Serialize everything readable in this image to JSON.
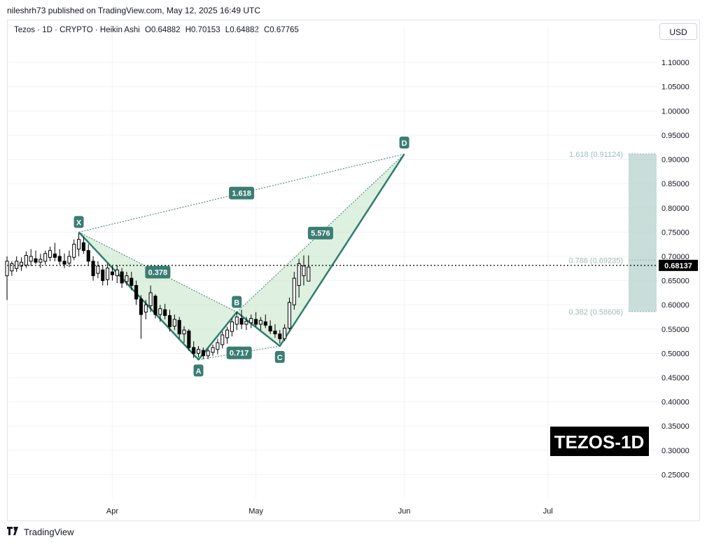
{
  "header": {
    "published_by": "nileshrh73 published on TradingView.com, May 12, 2025 16:49 UTC"
  },
  "symbol_bar": {
    "symbol": "Tezos · 1D · CRYPTO · Heikin Ashi",
    "open": "O0.64882",
    "high": "H0.70153",
    "low": "L0.64882",
    "close": "C0.67765"
  },
  "currency_button": "USD",
  "watermark": "TEZOS-1D",
  "footer": {
    "brand": "TradingView",
    "logo_icon": "tradingview-logo-icon"
  },
  "colors": {
    "pattern_line": "#2e7d6e",
    "pattern_fill": "#c8e6c9",
    "label_bg": "#3b7d73",
    "fib_zone": "#b2cfc9",
    "candle": "#000000",
    "watermark_bg": "#000000"
  },
  "chart_data": {
    "type": "candlestick",
    "y_scale": "linear",
    "ylim": [
      0.2,
      1.145
    ],
    "y_ticks": [
      "1.10000",
      "1.05000",
      "1.00000",
      "0.95000",
      "0.90000",
      "0.85000",
      "0.80000",
      "0.75000",
      "0.70000",
      "0.65000",
      "0.60000",
      "0.55000",
      "0.50000",
      "0.45000",
      "0.40000",
      "0.35000",
      "0.30000",
      "0.25000"
    ],
    "x_ticks": [
      {
        "label": "Apr",
        "date": "2025-04-01"
      },
      {
        "label": "May",
        "date": "2025-05-01"
      },
      {
        "label": "Jun",
        "date": "2025-06-01"
      },
      {
        "label": "Jul",
        "date": "2025-07-01"
      }
    ],
    "xlim": [
      "2025-03-10",
      "2025-07-24"
    ],
    "current_price": {
      "label": "0.68137",
      "value": 0.68137
    },
    "candles": [
      {
        "date": "2025-03-10",
        "o": 0.66,
        "h": 0.7,
        "l": 0.61,
        "c": 0.69
      },
      {
        "date": "2025-03-11",
        "o": 0.67,
        "h": 0.69,
        "l": 0.66,
        "c": 0.685
      },
      {
        "date": "2025-03-12",
        "o": 0.675,
        "h": 0.7,
        "l": 0.668,
        "c": 0.69
      },
      {
        "date": "2025-03-13",
        "o": 0.68,
        "h": 0.698,
        "l": 0.67,
        "c": 0.688
      },
      {
        "date": "2025-03-14",
        "o": 0.682,
        "h": 0.71,
        "l": 0.676,
        "c": 0.702
      },
      {
        "date": "2025-03-15",
        "o": 0.69,
        "h": 0.715,
        "l": 0.68,
        "c": 0.7
      },
      {
        "date": "2025-03-16",
        "o": 0.695,
        "h": 0.712,
        "l": 0.684,
        "c": 0.688
      },
      {
        "date": "2025-03-17",
        "o": 0.688,
        "h": 0.705,
        "l": 0.676,
        "c": 0.694
      },
      {
        "date": "2025-03-18",
        "o": 0.69,
        "h": 0.712,
        "l": 0.683,
        "c": 0.706
      },
      {
        "date": "2025-03-19",
        "o": 0.698,
        "h": 0.72,
        "l": 0.69,
        "c": 0.712
      },
      {
        "date": "2025-03-20",
        "o": 0.705,
        "h": 0.728,
        "l": 0.69,
        "c": 0.698
      },
      {
        "date": "2025-03-21",
        "o": 0.7,
        "h": 0.715,
        "l": 0.683,
        "c": 0.69
      },
      {
        "date": "2025-03-22",
        "o": 0.69,
        "h": 0.706,
        "l": 0.676,
        "c": 0.684
      },
      {
        "date": "2025-03-23",
        "o": 0.686,
        "h": 0.712,
        "l": 0.678,
        "c": 0.7
      },
      {
        "date": "2025-03-24",
        "o": 0.698,
        "h": 0.735,
        "l": 0.692,
        "c": 0.725
      },
      {
        "date": "2025-03-25",
        "o": 0.715,
        "h": 0.748,
        "l": 0.7,
        "c": 0.735
      },
      {
        "date": "2025-03-26",
        "o": 0.728,
        "h": 0.74,
        "l": 0.705,
        "c": 0.712
      },
      {
        "date": "2025-03-27",
        "o": 0.712,
        "h": 0.725,
        "l": 0.68,
        "c": 0.69
      },
      {
        "date": "2025-03-28",
        "o": 0.69,
        "h": 0.7,
        "l": 0.65,
        "c": 0.66
      },
      {
        "date": "2025-03-29",
        "o": 0.665,
        "h": 0.69,
        "l": 0.655,
        "c": 0.68
      },
      {
        "date": "2025-03-30",
        "o": 0.672,
        "h": 0.682,
        "l": 0.64,
        "c": 0.65
      },
      {
        "date": "2025-03-31",
        "o": 0.652,
        "h": 0.685,
        "l": 0.64,
        "c": 0.676
      },
      {
        "date": "2025-04-01",
        "o": 0.668,
        "h": 0.68,
        "l": 0.65,
        "c": 0.662
      },
      {
        "date": "2025-04-02",
        "o": 0.66,
        "h": 0.682,
        "l": 0.645,
        "c": 0.672
      },
      {
        "date": "2025-04-03",
        "o": 0.668,
        "h": 0.676,
        "l": 0.635,
        "c": 0.645
      },
      {
        "date": "2025-04-04",
        "o": 0.648,
        "h": 0.668,
        "l": 0.64,
        "c": 0.66
      },
      {
        "date": "2025-04-05",
        "o": 0.655,
        "h": 0.668,
        "l": 0.63,
        "c": 0.64
      },
      {
        "date": "2025-04-06",
        "o": 0.64,
        "h": 0.65,
        "l": 0.6,
        "c": 0.612
      },
      {
        "date": "2025-04-07",
        "o": 0.612,
        "h": 0.62,
        "l": 0.53,
        "c": 0.58
      },
      {
        "date": "2025-04-08",
        "o": 0.585,
        "h": 0.61,
        "l": 0.57,
        "c": 0.6
      },
      {
        "date": "2025-04-09",
        "o": 0.598,
        "h": 0.64,
        "l": 0.585,
        "c": 0.625
      },
      {
        "date": "2025-04-10",
        "o": 0.618,
        "h": 0.622,
        "l": 0.572,
        "c": 0.58
      },
      {
        "date": "2025-04-11",
        "o": 0.58,
        "h": 0.6,
        "l": 0.565,
        "c": 0.592
      },
      {
        "date": "2025-04-12",
        "o": 0.59,
        "h": 0.602,
        "l": 0.57,
        "c": 0.578
      },
      {
        "date": "2025-04-13",
        "o": 0.578,
        "h": 0.59,
        "l": 0.545,
        "c": 0.555
      },
      {
        "date": "2025-04-14",
        "o": 0.556,
        "h": 0.58,
        "l": 0.548,
        "c": 0.57
      },
      {
        "date": "2025-04-15",
        "o": 0.568,
        "h": 0.575,
        "l": 0.53,
        "c": 0.54
      },
      {
        "date": "2025-04-16",
        "o": 0.54,
        "h": 0.556,
        "l": 0.522,
        "c": 0.548
      },
      {
        "date": "2025-04-17",
        "o": 0.546,
        "h": 0.55,
        "l": 0.505,
        "c": 0.512
      },
      {
        "date": "2025-04-18",
        "o": 0.512,
        "h": 0.525,
        "l": 0.49,
        "c": 0.5
      },
      {
        "date": "2025-04-19",
        "o": 0.5,
        "h": 0.515,
        "l": 0.492,
        "c": 0.508
      },
      {
        "date": "2025-04-20",
        "o": 0.506,
        "h": 0.512,
        "l": 0.488,
        "c": 0.495
      },
      {
        "date": "2025-04-21",
        "o": 0.495,
        "h": 0.51,
        "l": 0.488,
        "c": 0.505
      },
      {
        "date": "2025-04-22",
        "o": 0.502,
        "h": 0.518,
        "l": 0.495,
        "c": 0.512
      },
      {
        "date": "2025-04-23",
        "o": 0.508,
        "h": 0.53,
        "l": 0.498,
        "c": 0.522
      },
      {
        "date": "2025-04-24",
        "o": 0.518,
        "h": 0.545,
        "l": 0.51,
        "c": 0.538
      },
      {
        "date": "2025-04-25",
        "o": 0.532,
        "h": 0.555,
        "l": 0.52,
        "c": 0.548
      },
      {
        "date": "2025-04-26",
        "o": 0.545,
        "h": 0.572,
        "l": 0.535,
        "c": 0.565
      },
      {
        "date": "2025-04-27",
        "o": 0.56,
        "h": 0.585,
        "l": 0.548,
        "c": 0.575
      },
      {
        "date": "2025-04-28",
        "o": 0.572,
        "h": 0.59,
        "l": 0.55,
        "c": 0.56
      },
      {
        "date": "2025-04-29",
        "o": 0.56,
        "h": 0.575,
        "l": 0.548,
        "c": 0.566
      },
      {
        "date": "2025-04-30",
        "o": 0.563,
        "h": 0.58,
        "l": 0.552,
        "c": 0.572
      },
      {
        "date": "2025-05-01",
        "o": 0.57,
        "h": 0.585,
        "l": 0.555,
        "c": 0.56
      },
      {
        "date": "2025-05-02",
        "o": 0.56,
        "h": 0.575,
        "l": 0.548,
        "c": 0.568
      },
      {
        "date": "2025-05-03",
        "o": 0.565,
        "h": 0.58,
        "l": 0.552,
        "c": 0.558
      },
      {
        "date": "2025-05-04",
        "o": 0.556,
        "h": 0.568,
        "l": 0.54,
        "c": 0.546
      },
      {
        "date": "2025-05-05",
        "o": 0.546,
        "h": 0.56,
        "l": 0.532,
        "c": 0.54
      },
      {
        "date": "2025-05-06",
        "o": 0.54,
        "h": 0.548,
        "l": 0.52,
        "c": 0.53
      },
      {
        "date": "2025-05-07",
        "o": 0.53,
        "h": 0.56,
        "l": 0.525,
        "c": 0.552
      },
      {
        "date": "2025-05-08",
        "o": 0.552,
        "h": 0.615,
        "l": 0.548,
        "c": 0.605
      },
      {
        "date": "2025-05-09",
        "o": 0.6,
        "h": 0.668,
        "l": 0.59,
        "c": 0.655
      },
      {
        "date": "2025-05-10",
        "o": 0.64,
        "h": 0.695,
        "l": 0.615,
        "c": 0.685
      },
      {
        "date": "2025-05-11",
        "o": 0.66,
        "h": 0.702,
        "l": 0.64,
        "c": 0.68
      },
      {
        "date": "2025-05-12",
        "o": 0.649,
        "h": 0.702,
        "l": 0.649,
        "c": 0.678
      }
    ],
    "harmonic_pattern": {
      "points": [
        {
          "label": "X",
          "date": "2025-03-25",
          "value": 0.75
        },
        {
          "label": "A",
          "date": "2025-04-19",
          "value": 0.487
        },
        {
          "label": "B",
          "date": "2025-04-27",
          "value": 0.585
        },
        {
          "label": "C",
          "date": "2025-05-06",
          "value": 0.515
        },
        {
          "label": "D",
          "date": "2025-06-01",
          "value": 0.911
        }
      ],
      "ratios": [
        {
          "label": "0.378",
          "between": "XA-AB"
        },
        {
          "label": "0.717",
          "between": "AB-BC"
        },
        {
          "label": "5.576",
          "between": "BC-CD"
        },
        {
          "label": "1.618",
          "between": "XA-XD"
        }
      ]
    },
    "fib_levels": [
      {
        "label": "1.618 (0.91124)",
        "value": 0.91124
      },
      {
        "label": "0.786 (0.69235)",
        "value": 0.69235
      },
      {
        "label": "0.382 (0.58606)",
        "value": 0.58606
      }
    ],
    "fib_zone": {
      "from": 0.58606,
      "to": 0.91124
    }
  }
}
